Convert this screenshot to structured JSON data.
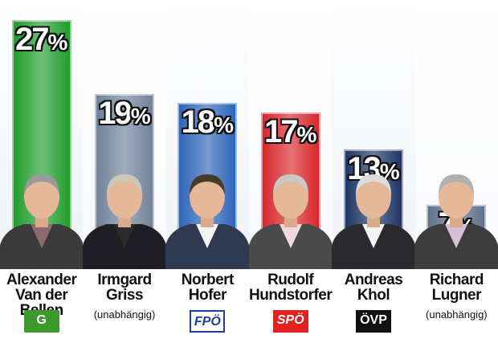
{
  "chart_data": {
    "type": "bar",
    "title": "",
    "xlabel": "",
    "ylabel": "",
    "ylim": [
      0,
      27
    ],
    "categories": [
      "Alexander Van der Bellen",
      "Irmgard Griss",
      "Norbert Hofer",
      "Rudolf Hundstorfer",
      "Andreas Khol",
      "Richard Lugner"
    ],
    "values": [
      27,
      19,
      18,
      17,
      13,
      7
    ],
    "value_labels": [
      "27",
      "19",
      "18",
      "17",
      "13",
      "7"
    ],
    "value_suffix": "%",
    "candidates": [
      {
        "line1": "Alexander",
        "line2": "Van der Bellen",
        "affiliation": "",
        "party_logo": "gruene-logo",
        "color": "#1e9c2a"
      },
      {
        "line1": "Irmgard",
        "line2": "Griss",
        "affiliation": "(unabhängig)",
        "party_logo": "",
        "color": "#6f8199"
      },
      {
        "line1": "Norbert",
        "line2": "Hofer",
        "affiliation": "",
        "party_logo": "fpoe-logo",
        "color": "#2d64b6"
      },
      {
        "line1": "Rudolf",
        "line2": "Hundstorfer",
        "affiliation": "",
        "party_logo": "spoe-logo",
        "color": "#d7262a"
      },
      {
        "line1": "Andreas",
        "line2": "Khol",
        "affiliation": "",
        "party_logo": "oevp-logo",
        "color": "#1d3563"
      },
      {
        "line1": "Richard",
        "line2": "Lugner",
        "affiliation": "(unabhängig)",
        "party_logo": "",
        "color": "#5e708a"
      }
    ],
    "logos": {
      "gruene": "G",
      "fpoe": "FPÖ",
      "spoe": "SPÖ",
      "oevp": "ÖVP"
    }
  }
}
